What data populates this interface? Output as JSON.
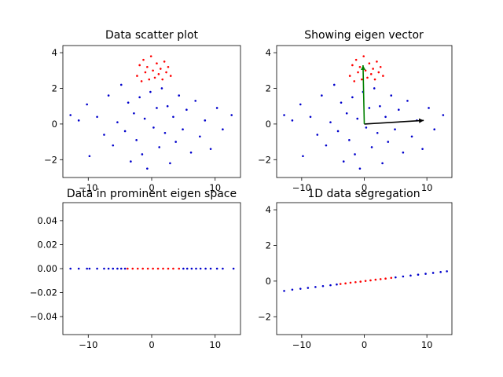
{
  "colors": {
    "background": "#ffffff",
    "red": "#ff0000",
    "blue": "#0000cc",
    "green": "#008000",
    "black": "#000000"
  },
  "chart_data": [
    {
      "type": "scatter",
      "title": "Data scatter plot",
      "xlim": [
        -14,
        14
      ],
      "ylim": [
        -3,
        4.4
      ],
      "xticks": [
        "−10",
        "0",
        "10"
      ],
      "xtick_values": [
        -10,
        0,
        10
      ],
      "yticks": [
        "−2",
        "0",
        "2",
        "4"
      ],
      "ytick_values": [
        -2,
        0,
        2,
        4
      ],
      "series": [
        {
          "color": "#0000cc",
          "points": [
            [
              -12.8,
              0.5
            ],
            [
              -11.5,
              0.2
            ],
            [
              -10.2,
              1.1
            ],
            [
              -9.8,
              -1.8
            ],
            [
              -8.6,
              0.4
            ],
            [
              -7.5,
              -0.6
            ],
            [
              -6.8,
              1.6
            ],
            [
              -6.1,
              -1.2
            ],
            [
              -5.4,
              0.1
            ],
            [
              -4.8,
              2.2
            ],
            [
              -4.2,
              -0.4
            ],
            [
              -3.7,
              1.2
            ],
            [
              -3.3,
              -2.1
            ],
            [
              -2.8,
              0.6
            ],
            [
              -2.4,
              -0.9
            ],
            [
              -1.9,
              1.5
            ],
            [
              -1.5,
              -1.7
            ],
            [
              -1.1,
              0.3
            ],
            [
              -0.7,
              -2.5
            ],
            [
              -0.2,
              1.8
            ],
            [
              0.3,
              -0.2
            ],
            [
              0.8,
              0.9
            ],
            [
              1.2,
              -1.3
            ],
            [
              1.6,
              2.0
            ],
            [
              2.1,
              -0.5
            ],
            [
              2.5,
              1.0
            ],
            [
              2.9,
              -2.2
            ],
            [
              3.4,
              0.4
            ],
            [
              3.8,
              -1.0
            ],
            [
              4.3,
              1.6
            ],
            [
              4.9,
              -0.3
            ],
            [
              5.5,
              0.8
            ],
            [
              6.2,
              -1.6
            ],
            [
              6.9,
              1.3
            ],
            [
              7.6,
              -0.7
            ],
            [
              8.4,
              0.2
            ],
            [
              9.3,
              -1.4
            ],
            [
              10.3,
              0.9
            ],
            [
              11.2,
              -0.3
            ],
            [
              12.6,
              0.5
            ]
          ]
        },
        {
          "color": "#ff0000",
          "points": [
            [
              -2.3,
              2.7
            ],
            [
              -1.9,
              3.3
            ],
            [
              -1.6,
              2.4
            ],
            [
              -1.3,
              3.6
            ],
            [
              -1.0,
              2.9
            ],
            [
              -0.7,
              3.2
            ],
            [
              -0.4,
              2.5
            ],
            [
              -0.1,
              3.8
            ],
            [
              0.2,
              3.0
            ],
            [
              0.5,
              2.6
            ],
            [
              0.8,
              3.4
            ],
            [
              1.1,
              2.8
            ],
            [
              1.4,
              3.1
            ],
            [
              1.7,
              2.5
            ],
            [
              2.0,
              3.5
            ],
            [
              2.3,
              2.9
            ],
            [
              2.6,
              3.2
            ],
            [
              3.0,
              2.7
            ]
          ]
        }
      ]
    },
    {
      "type": "scatter",
      "title": "Showing eigen vector",
      "xlim": [
        -14,
        14
      ],
      "ylim": [
        -3,
        4.4
      ],
      "xticks": [
        "−10",
        "0",
        "10"
      ],
      "xtick_values": [
        -10,
        0,
        10
      ],
      "yticks": [
        "−2",
        "0",
        "2",
        "4"
      ],
      "ytick_values": [
        -2,
        0,
        2,
        4
      ],
      "series": [
        {
          "color": "#0000cc",
          "points": [
            [
              -12.8,
              0.5
            ],
            [
              -11.5,
              0.2
            ],
            [
              -10.2,
              1.1
            ],
            [
              -9.8,
              -1.8
            ],
            [
              -8.6,
              0.4
            ],
            [
              -7.5,
              -0.6
            ],
            [
              -6.8,
              1.6
            ],
            [
              -6.1,
              -1.2
            ],
            [
              -5.4,
              0.1
            ],
            [
              -4.8,
              2.2
            ],
            [
              -4.2,
              -0.4
            ],
            [
              -3.7,
              1.2
            ],
            [
              -3.3,
              -2.1
            ],
            [
              -2.8,
              0.6
            ],
            [
              -2.4,
              -0.9
            ],
            [
              -1.9,
              1.5
            ],
            [
              -1.5,
              -1.7
            ],
            [
              -1.1,
              0.3
            ],
            [
              -0.7,
              -2.5
            ],
            [
              -0.2,
              1.8
            ],
            [
              0.3,
              -0.2
            ],
            [
              0.8,
              0.9
            ],
            [
              1.2,
              -1.3
            ],
            [
              1.6,
              2.0
            ],
            [
              2.1,
              -0.5
            ],
            [
              2.5,
              1.0
            ],
            [
              2.9,
              -2.2
            ],
            [
              3.4,
              0.4
            ],
            [
              3.8,
              -1.0
            ],
            [
              4.3,
              1.6
            ],
            [
              4.9,
              -0.3
            ],
            [
              5.5,
              0.8
            ],
            [
              6.2,
              -1.6
            ],
            [
              6.9,
              1.3
            ],
            [
              7.6,
              -0.7
            ],
            [
              8.4,
              0.2
            ],
            [
              9.3,
              -1.4
            ],
            [
              10.3,
              0.9
            ],
            [
              11.2,
              -0.3
            ],
            [
              12.6,
              0.5
            ]
          ]
        },
        {
          "color": "#ff0000",
          "points": [
            [
              -2.3,
              2.7
            ],
            [
              -1.9,
              3.3
            ],
            [
              -1.6,
              2.4
            ],
            [
              -1.3,
              3.6
            ],
            [
              -1.0,
              2.9
            ],
            [
              -0.7,
              3.2
            ],
            [
              -0.4,
              2.5
            ],
            [
              -0.1,
              3.8
            ],
            [
              0.2,
              3.0
            ],
            [
              0.5,
              2.6
            ],
            [
              0.8,
              3.4
            ],
            [
              1.1,
              2.8
            ],
            [
              1.4,
              3.1
            ],
            [
              1.7,
              2.5
            ],
            [
              2.0,
              3.5
            ],
            [
              2.3,
              2.9
            ],
            [
              2.6,
              3.2
            ],
            [
              3.0,
              2.7
            ]
          ]
        }
      ],
      "vectors": [
        {
          "color": "#000000",
          "from": [
            0,
            0
          ],
          "to": [
            9.5,
            0.2
          ]
        },
        {
          "color": "#008000",
          "from": [
            0,
            0
          ],
          "to": [
            -0.2,
            3.3
          ]
        }
      ]
    },
    {
      "type": "scatter",
      "title": "Data in prominent eigen space",
      "xlim": [
        -14,
        14
      ],
      "ylim": [
        -0.055,
        0.055
      ],
      "xticks": [
        "−10",
        "0",
        "10"
      ],
      "xtick_values": [
        -10,
        0,
        10
      ],
      "yticks": [
        "−0.04",
        "−0.02",
        "0.00",
        "0.02",
        "0.04"
      ],
      "ytick_values": [
        -0.04,
        -0.02,
        0,
        0.02,
        0.04
      ],
      "series": [
        {
          "color": "#0000cc",
          "points": [
            [
              -12.8,
              0
            ],
            [
              -11.5,
              0
            ],
            [
              -10.2,
              0
            ],
            [
              -9.8,
              0
            ],
            [
              -8.6,
              0
            ],
            [
              -7.5,
              0
            ],
            [
              -6.8,
              0
            ],
            [
              -6.1,
              0
            ],
            [
              -5.4,
              0
            ],
            [
              -4.8,
              0
            ],
            [
              -4.2,
              0
            ],
            [
              5.0,
              0
            ],
            [
              5.6,
              0
            ],
            [
              6.3,
              0
            ],
            [
              7.0,
              0
            ],
            [
              7.7,
              0
            ],
            [
              8.5,
              0
            ],
            [
              9.3,
              0
            ],
            [
              10.3,
              0
            ],
            [
              11.2,
              0
            ],
            [
              12.9,
              0
            ]
          ]
        },
        {
          "color": "#ff0000",
          "points": [
            [
              -3.8,
              0
            ],
            [
              -3.0,
              0
            ],
            [
              -2.2,
              0
            ],
            [
              -1.4,
              0
            ],
            [
              -0.6,
              0
            ],
            [
              0.2,
              0
            ],
            [
              1.0,
              0
            ],
            [
              1.8,
              0
            ],
            [
              2.6,
              0
            ],
            [
              3.4,
              0
            ],
            [
              4.3,
              0
            ]
          ]
        }
      ]
    },
    {
      "type": "scatter",
      "title": "1D data segregation",
      "xlim": [
        -14,
        14
      ],
      "ylim": [
        -3,
        4.4
      ],
      "xticks": [
        "−10",
        "0",
        "10"
      ],
      "xtick_values": [
        -10,
        0,
        10
      ],
      "yticks": [
        "−2",
        "0",
        "2",
        "4"
      ],
      "ytick_values": [
        -2,
        0,
        2,
        4
      ],
      "series": [
        {
          "color": "#0000cc",
          "points": [
            [
              -12.8,
              -0.55
            ],
            [
              -11.5,
              -0.48
            ],
            [
              -10.2,
              -0.43
            ],
            [
              -9.0,
              -0.38
            ],
            [
              -7.8,
              -0.33
            ],
            [
              -6.6,
              -0.28
            ],
            [
              -5.4,
              -0.23
            ],
            [
              -4.4,
              -0.19
            ],
            [
              5.0,
              0.21
            ],
            [
              6.2,
              0.26
            ],
            [
              7.4,
              0.31
            ],
            [
              8.6,
              0.36
            ],
            [
              9.8,
              0.41
            ],
            [
              11.0,
              0.46
            ],
            [
              12.2,
              0.51
            ],
            [
              13.2,
              0.55
            ]
          ]
        },
        {
          "color": "#ff0000",
          "points": [
            [
              -3.8,
              -0.16
            ],
            [
              -3.0,
              -0.13
            ],
            [
              -2.2,
              -0.09
            ],
            [
              -1.4,
              -0.06
            ],
            [
              -0.6,
              -0.03
            ],
            [
              0.2,
              0.01
            ],
            [
              1.0,
              0.04
            ],
            [
              1.8,
              0.08
            ],
            [
              2.6,
              0.11
            ],
            [
              3.4,
              0.14
            ],
            [
              4.3,
              0.18
            ]
          ]
        }
      ]
    }
  ]
}
